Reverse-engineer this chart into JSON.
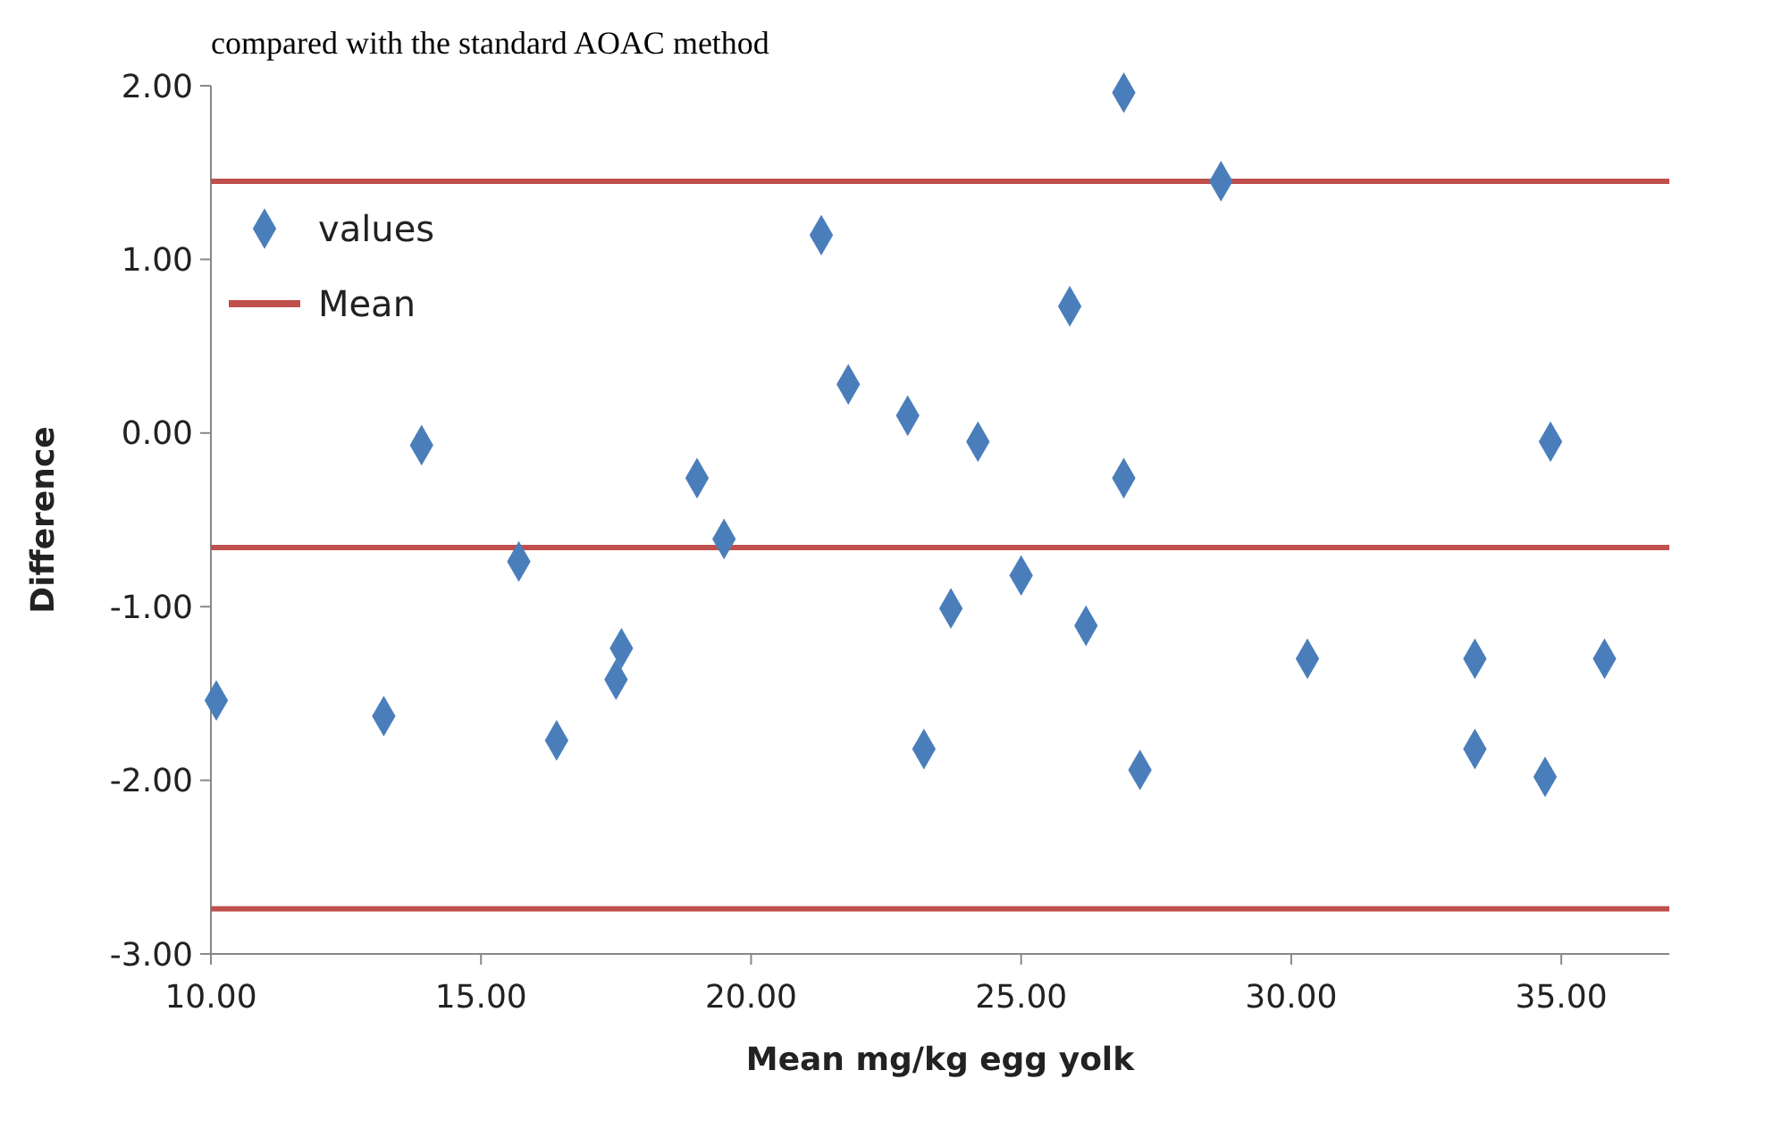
{
  "chart_data": {
    "type": "scatter",
    "title": "compared with the standard AOAC method",
    "xlabel": "Mean mg/kg egg yolk",
    "ylabel": "Difference",
    "xlim": [
      10,
      37
    ],
    "xticks": [
      {
        "value": 10,
        "label": "10.00"
      },
      {
        "value": 15,
        "label": "15.00"
      },
      {
        "value": 20,
        "label": "20.00"
      },
      {
        "value": 25,
        "label": "25.00"
      },
      {
        "value": 30,
        "label": "30.00"
      },
      {
        "value": 35,
        "label": "35.00"
      }
    ],
    "ylim": [
      -3,
      2
    ],
    "yticks": [
      {
        "value": -3,
        "label": "-3.00"
      },
      {
        "value": -2,
        "label": "-2.00"
      },
      {
        "value": -1,
        "label": "-1.00"
      },
      {
        "value": 0,
        "label": "0.00"
      },
      {
        "value": 1,
        "label": "1.00"
      },
      {
        "value": 2,
        "label": "2.00"
      }
    ],
    "series": [
      {
        "name": "values",
        "color": "#4a7ebb",
        "x": [
          10.1,
          13.2,
          13.9,
          15.7,
          16.4,
          17.5,
          17.6,
          19.0,
          19.5,
          21.3,
          21.8,
          22.9,
          23.2,
          23.7,
          24.2,
          25.0,
          25.9,
          26.2,
          26.9,
          26.9,
          27.2,
          28.7,
          30.3,
          33.4,
          33.4,
          34.8,
          34.7,
          35.8
        ],
        "values": [
          -1.54,
          -1.63,
          -0.07,
          -0.74,
          -1.77,
          -1.42,
          -1.24,
          -0.26,
          -0.61,
          1.14,
          0.28,
          0.1,
          -1.82,
          -1.01,
          -0.05,
          -0.82,
          0.73,
          -1.11,
          1.96,
          -0.26,
          -1.94,
          1.45,
          -1.3,
          -1.3,
          -1.82,
          -0.05,
          -1.98,
          -1.3
        ]
      }
    ],
    "marker": "diamond",
    "legend": "top left",
    "grid": false,
    "ref_lines": [
      {
        "axis": "y",
        "value": 1.45,
        "label": null,
        "color": "#c0504d"
      },
      {
        "axis": "y",
        "value": -0.66,
        "label": "Mean",
        "color": "#c0504d"
      },
      {
        "axis": "y",
        "value": -2.74,
        "label": null,
        "color": "#c0504d"
      }
    ]
  }
}
